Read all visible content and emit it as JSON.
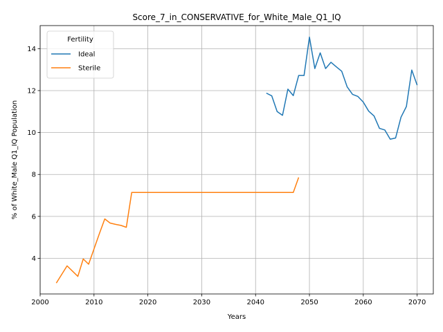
{
  "chart_data": {
    "type": "line",
    "title": "Score_7_in_CONSERVATIVE_for_White_Male_Q1_IQ",
    "xlabel": "Years",
    "ylabel": "% of White_Male Q1_IQ Population",
    "xlim": [
      2000,
      2073
    ],
    "ylim": [
      2.3,
      15.1
    ],
    "xticks": [
      2000,
      2010,
      2020,
      2030,
      2040,
      2050,
      2060,
      2070
    ],
    "yticks": [
      4,
      6,
      8,
      10,
      12,
      14
    ],
    "grid": true,
    "legend": {
      "title": "Fertility",
      "placement": "top-left"
    },
    "series": [
      {
        "name": "Ideal",
        "color": "#1f77b4",
        "x": [
          2042,
          2043,
          2044,
          2045,
          2046,
          2047,
          2048,
          2049,
          2050,
          2051,
          2052,
          2053,
          2054,
          2055,
          2056,
          2057,
          2058,
          2059,
          2060,
          2061,
          2062,
          2063,
          2064,
          2065,
          2066,
          2067,
          2068,
          2069,
          2070
        ],
        "y": [
          11.88,
          11.75,
          11.0,
          10.82,
          12.07,
          11.76,
          12.72,
          12.72,
          14.55,
          13.05,
          13.8,
          13.05,
          13.35,
          13.13,
          12.92,
          12.18,
          11.82,
          11.72,
          11.45,
          11.02,
          10.79,
          10.2,
          10.12,
          9.68,
          9.74,
          10.73,
          11.24,
          12.98,
          12.26
        ]
      },
      {
        "name": "Sterile",
        "color": "#ff7f0e",
        "x": [
          2003,
          2005,
          2007,
          2008,
          2009,
          2010,
          2011,
          2012,
          2013,
          2014,
          2015,
          2016,
          2017,
          2018,
          2020,
          2025,
          2030,
          2035,
          2040,
          2045,
          2047,
          2048
        ],
        "y": [
          2.82,
          3.64,
          3.14,
          3.97,
          3.72,
          4.45,
          5.18,
          5.88,
          5.68,
          5.62,
          5.57,
          5.48,
          7.14,
          7.14,
          7.14,
          7.14,
          7.14,
          7.14,
          7.14,
          7.14,
          7.14,
          7.86
        ]
      }
    ]
  }
}
